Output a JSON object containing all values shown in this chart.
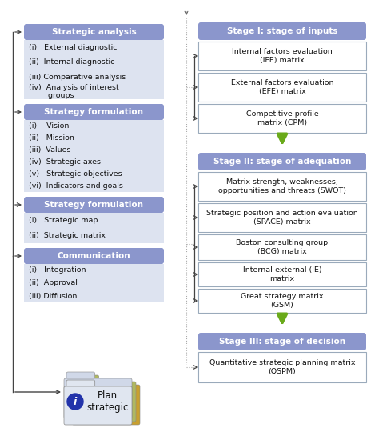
{
  "fig_width": 4.74,
  "fig_height": 5.6,
  "bg_color": "#ffffff",
  "left_header_color": "#8b96cc",
  "left_body_color": "#dde3f0",
  "right_header_color": "#8b96cc",
  "right_body_bg": "#ffffff",
  "right_body_border": "#9aaabb",
  "green_arrow_color": "#6aaa1a",
  "line_color": "#444444",
  "left_headers": [
    "Strategic analysis",
    "Strategy formulation",
    "Strategy formulation",
    "Communication"
  ],
  "left_items": [
    [
      "(i)   External diagnostic",
      "(ii)  Internal diagnostic",
      "(iii) Comparative analysis",
      "(iv)  Analysis of interest\n         groups"
    ],
    [
      "(i)    Vision",
      "(ii)   Mission",
      "(iii)  Values",
      "(iv)  Strategic axes",
      "(v)   Strategic objectives",
      "(vi)  Indicators and goals"
    ],
    [
      "(i)   Strategic map",
      "(ii)  Strategic matrix"
    ],
    [
      "(i)   Integration",
      "(ii)  Approval",
      "(iii) Diffusion"
    ]
  ],
  "right_stage_headers": [
    "Stage I: stage of inputs",
    "Stage II: stage of adequation",
    "Stage III: stage of decision"
  ],
  "right_stage_items": [
    [
      "Internal factors evaluation\n(IFE) matrix",
      "External factors evaluation\n(EFE) matrix",
      "Competitive profile\nmatrix (CPM)"
    ],
    [
      "Matrix strength, weaknesses,\nopportunities and threats (SWOT)",
      "Strategic position and action evaluation\n(SPACE) matrix",
      "Boston consulting group\n(BCG) matrix",
      "Internal-external (IE)\nmatrix",
      "Great strategy matrix\n(GSM)"
    ],
    [
      "Quantitative strategic planning matrix\n(QSPM)"
    ]
  ]
}
